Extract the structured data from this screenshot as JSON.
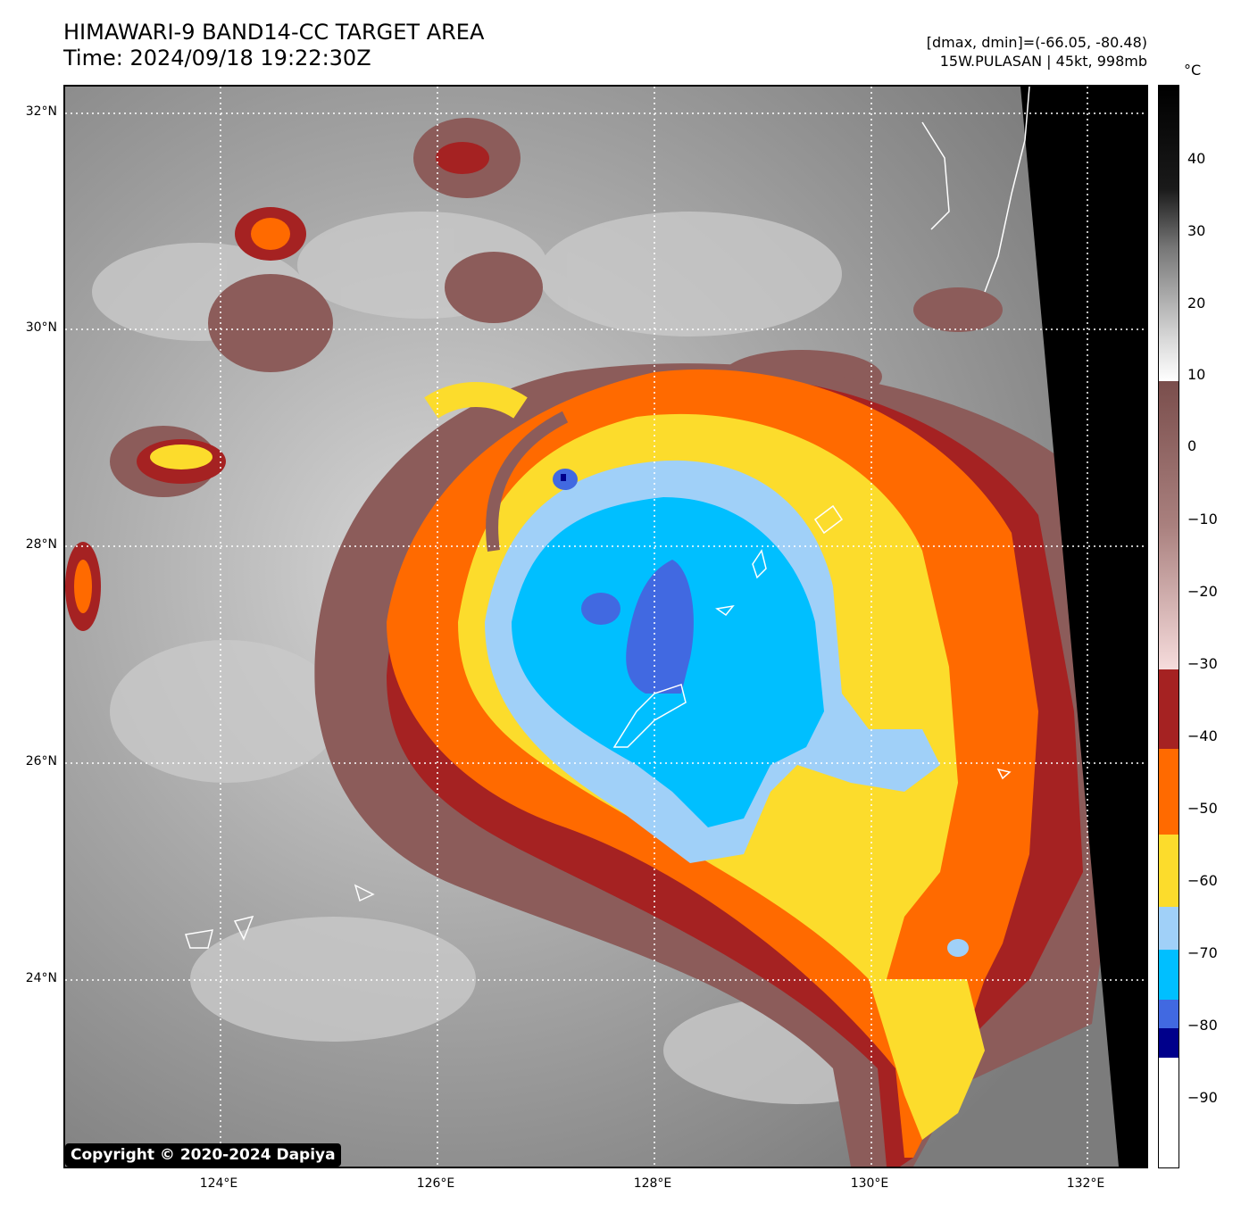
{
  "header": {
    "title_line1": "HIMAWARI-9 BAND14-CC TARGET AREA",
    "title_line2": "Time: 2024/09/18 19:22:30Z",
    "info_line1": "[dmax, dmin]=(-66.05, -80.48)",
    "info_line2": "15W.PULASAN | 45kt, 998mb"
  },
  "map": {
    "lat_labels": [
      "32°N",
      "30°N",
      "28°N",
      "26°N",
      "24°N"
    ],
    "lon_labels": [
      "124°E",
      "126°E",
      "128°E",
      "130°E",
      "132°E"
    ],
    "lat_range": [
      22.3,
      32.3
    ],
    "lon_range": [
      122.6,
      132.6
    ],
    "gridlines": "dotted white"
  },
  "colorbar": {
    "unit": "°C",
    "ticks": [
      "40",
      "30",
      "20",
      "10",
      "0",
      "−10",
      "−20",
      "−30",
      "−40",
      "−50",
      "−60",
      "−70",
      "−80",
      "−90"
    ],
    "range": [
      -100,
      50
    ],
    "bands": [
      {
        "from": -100,
        "to": -85,
        "color": "#ffffff"
      },
      {
        "from": -85,
        "to": -81,
        "color": "#00008b"
      },
      {
        "from": -81,
        "to": -76,
        "color": "#4169e1"
      },
      {
        "from": -76,
        "to": -69,
        "color": "#00bfff"
      },
      {
        "from": -69,
        "to": -63,
        "color": "#a0d0f8"
      },
      {
        "from": -63,
        "to": -53,
        "color": "#fcdc2c"
      },
      {
        "from": -53,
        "to": -42,
        "color": "#ff6a00"
      },
      {
        "from": -42,
        "to": -31,
        "color": "#a52222"
      },
      {
        "from": -31,
        "to": 9,
        "color": "gradient-pink-brown"
      },
      {
        "from": 9,
        "to": 50,
        "color": "gradient-white-black"
      }
    ]
  },
  "copyright": "Copyright © 2020-2024 Dapiya"
}
